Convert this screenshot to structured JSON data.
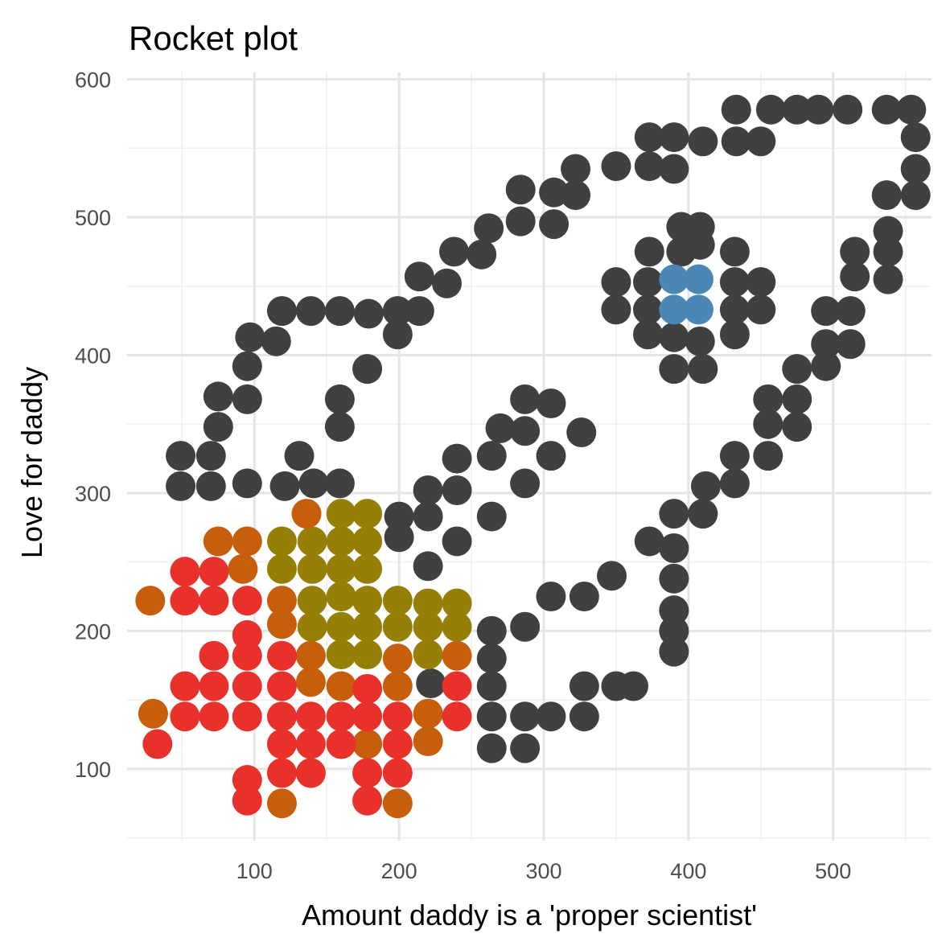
{
  "chart_data": {
    "type": "scatter",
    "title": "Rocket plot",
    "xlabel": "Amount daddy is a 'proper scientist'",
    "ylabel": "Love for daddy",
    "xlim": [
      12,
      568
    ],
    "ylim": [
      48,
      605
    ],
    "x_ticks": [
      100,
      200,
      300,
      400,
      500
    ],
    "y_ticks": [
      100,
      200,
      300,
      400,
      500,
      600
    ],
    "x_tick_labels": [
      "100",
      "200",
      "300",
      "400",
      "500"
    ],
    "y_tick_labels": [
      "100",
      "200",
      "300",
      "400",
      "500",
      "600"
    ],
    "grid": true,
    "legend": "none",
    "series": [
      {
        "color": "#404040",
        "points": [
          [
            433,
            578
          ],
          [
            457,
            578
          ],
          [
            475,
            578
          ],
          [
            490,
            578
          ],
          [
            510,
            578
          ],
          [
            537,
            578
          ],
          [
            554,
            578
          ],
          [
            373,
            558
          ],
          [
            390,
            558
          ],
          [
            410,
            555
          ],
          [
            433,
            555
          ],
          [
            450,
            555
          ],
          [
            557,
            558
          ],
          [
            350,
            537
          ],
          [
            373,
            537
          ],
          [
            390,
            535
          ],
          [
            322,
            535
          ],
          [
            557,
            535
          ],
          [
            284,
            520
          ],
          [
            307,
            518
          ],
          [
            322,
            516
          ],
          [
            537,
            516
          ],
          [
            557,
            516
          ],
          [
            262,
            492
          ],
          [
            284,
            497
          ],
          [
            307,
            495
          ],
          [
            538,
            490
          ],
          [
            238,
            475
          ],
          [
            257,
            473
          ],
          [
            395,
            493
          ],
          [
            408,
            493
          ],
          [
            373,
            475
          ],
          [
            395,
            475
          ],
          [
            408,
            480
          ],
          [
            432,
            475
          ],
          [
            515,
            475
          ],
          [
            538,
            475
          ],
          [
            214,
            457
          ],
          [
            233,
            452
          ],
          [
            350,
            453
          ],
          [
            372,
            453
          ],
          [
            432,
            453
          ],
          [
            450,
            453
          ],
          [
            515,
            457
          ],
          [
            538,
            455
          ],
          [
            119,
            432
          ],
          [
            139,
            432
          ],
          [
            159,
            432
          ],
          [
            179,
            430
          ],
          [
            199,
            432
          ],
          [
            214,
            432
          ],
          [
            350,
            433
          ],
          [
            372,
            433
          ],
          [
            432,
            433
          ],
          [
            450,
            433
          ],
          [
            495,
            432
          ],
          [
            512,
            432
          ],
          [
            97,
            413
          ],
          [
            115,
            410
          ],
          [
            199,
            415
          ],
          [
            372,
            415
          ],
          [
            390,
            413
          ],
          [
            408,
            410
          ],
          [
            432,
            415
          ],
          [
            495,
            408
          ],
          [
            512,
            408
          ],
          [
            95,
            392
          ],
          [
            178,
            390
          ],
          [
            390,
            390
          ],
          [
            410,
            390
          ],
          [
            475,
            390
          ],
          [
            495,
            392
          ],
          [
            75,
            370
          ],
          [
            95,
            368
          ],
          [
            159,
            368
          ],
          [
            455,
            368
          ],
          [
            475,
            368
          ],
          [
            75,
            348
          ],
          [
            159,
            348
          ],
          [
            455,
            350
          ],
          [
            475,
            348
          ],
          [
            49,
            327
          ],
          [
            70,
            327
          ],
          [
            131,
            327
          ],
          [
            432,
            327
          ],
          [
            455,
            327
          ],
          [
            49,
            305
          ],
          [
            70,
            305
          ],
          [
            95,
            307
          ],
          [
            121,
            305
          ],
          [
            141,
            307
          ],
          [
            159,
            307
          ],
          [
            412,
            305
          ],
          [
            432,
            307
          ],
          [
            270,
            347
          ],
          [
            287,
            345
          ],
          [
            287,
            368
          ],
          [
            305,
            365
          ],
          [
            326,
            344
          ],
          [
            305,
            327
          ],
          [
            264,
            327
          ],
          [
            240,
            325
          ],
          [
            287,
            307
          ],
          [
            240,
            302
          ],
          [
            220,
            302
          ],
          [
            220,
            283
          ],
          [
            200,
            283
          ],
          [
            200,
            268
          ],
          [
            264,
            283
          ],
          [
            240,
            265
          ],
          [
            220,
            247
          ],
          [
            390,
            285
          ],
          [
            410,
            285
          ],
          [
            373,
            265
          ],
          [
            390,
            260
          ],
          [
            390,
            238
          ],
          [
            347,
            240
          ],
          [
            305,
            225
          ],
          [
            328,
            225
          ],
          [
            390,
            215
          ],
          [
            390,
            200
          ],
          [
            390,
            185
          ],
          [
            264,
            200
          ],
          [
            287,
            203
          ],
          [
            264,
            180
          ],
          [
            264,
            160
          ],
          [
            222,
            162
          ],
          [
            264,
            138
          ],
          [
            287,
            138
          ],
          [
            305,
            138
          ],
          [
            328,
            138
          ],
          [
            328,
            160
          ],
          [
            350,
            160
          ],
          [
            362,
            160
          ],
          [
            264,
            115
          ],
          [
            287,
            115
          ]
        ]
      },
      {
        "color": "#4c86b4",
        "points": [
          [
            390,
            455
          ],
          [
            407,
            455
          ],
          [
            390,
            433
          ],
          [
            407,
            433
          ]
        ]
      },
      {
        "color": "#967f06",
        "points": [
          [
            160,
            285
          ],
          [
            178,
            285
          ],
          [
            119,
            265
          ],
          [
            140,
            265
          ],
          [
            160,
            265
          ],
          [
            178,
            265
          ],
          [
            119,
            245
          ],
          [
            140,
            245
          ],
          [
            160,
            245
          ],
          [
            178,
            245
          ],
          [
            140,
            222
          ],
          [
            160,
            225
          ],
          [
            178,
            222
          ],
          [
            199,
            222
          ],
          [
            220,
            220
          ],
          [
            240,
            220
          ],
          [
            140,
            203
          ],
          [
            160,
            203
          ],
          [
            178,
            203
          ],
          [
            199,
            203
          ],
          [
            220,
            203
          ],
          [
            240,
            203
          ],
          [
            160,
            183
          ],
          [
            178,
            183
          ],
          [
            220,
            183
          ]
        ]
      },
      {
        "color": "#c75e0b",
        "points": [
          [
            136,
            285
          ],
          [
            75,
            265
          ],
          [
            95,
            265
          ],
          [
            92,
            245
          ],
          [
            28,
            222
          ],
          [
            119,
            222
          ],
          [
            119,
            205
          ],
          [
            139,
            182
          ],
          [
            139,
            163
          ],
          [
            160,
            160
          ],
          [
            199,
            180
          ],
          [
            199,
            160
          ],
          [
            240,
            182
          ],
          [
            30,
            140
          ],
          [
            220,
            140
          ],
          [
            220,
            120
          ],
          [
            178,
            118
          ],
          [
            119,
            75
          ],
          [
            199,
            75
          ]
        ]
      },
      {
        "color": "#e8312b",
        "points": [
          [
            52,
            243
          ],
          [
            72,
            243
          ],
          [
            52,
            222
          ],
          [
            72,
            222
          ],
          [
            95,
            222
          ],
          [
            95,
            197
          ],
          [
            72,
            182
          ],
          [
            95,
            182
          ],
          [
            119,
            182
          ],
          [
            52,
            160
          ],
          [
            72,
            160
          ],
          [
            95,
            160
          ],
          [
            119,
            160
          ],
          [
            178,
            158
          ],
          [
            240,
            160
          ],
          [
            52,
            138
          ],
          [
            72,
            138
          ],
          [
            95,
            138
          ],
          [
            119,
            138
          ],
          [
            139,
            138
          ],
          [
            160,
            138
          ],
          [
            178,
            138
          ],
          [
            199,
            138
          ],
          [
            240,
            138
          ],
          [
            119,
            118
          ],
          [
            139,
            118
          ],
          [
            160,
            118
          ],
          [
            199,
            118
          ],
          [
            33,
            118
          ],
          [
            119,
            97
          ],
          [
            139,
            97
          ],
          [
            178,
            97
          ],
          [
            199,
            97
          ],
          [
            95,
            92
          ],
          [
            95,
            77
          ],
          [
            178,
            77
          ]
        ]
      }
    ]
  }
}
